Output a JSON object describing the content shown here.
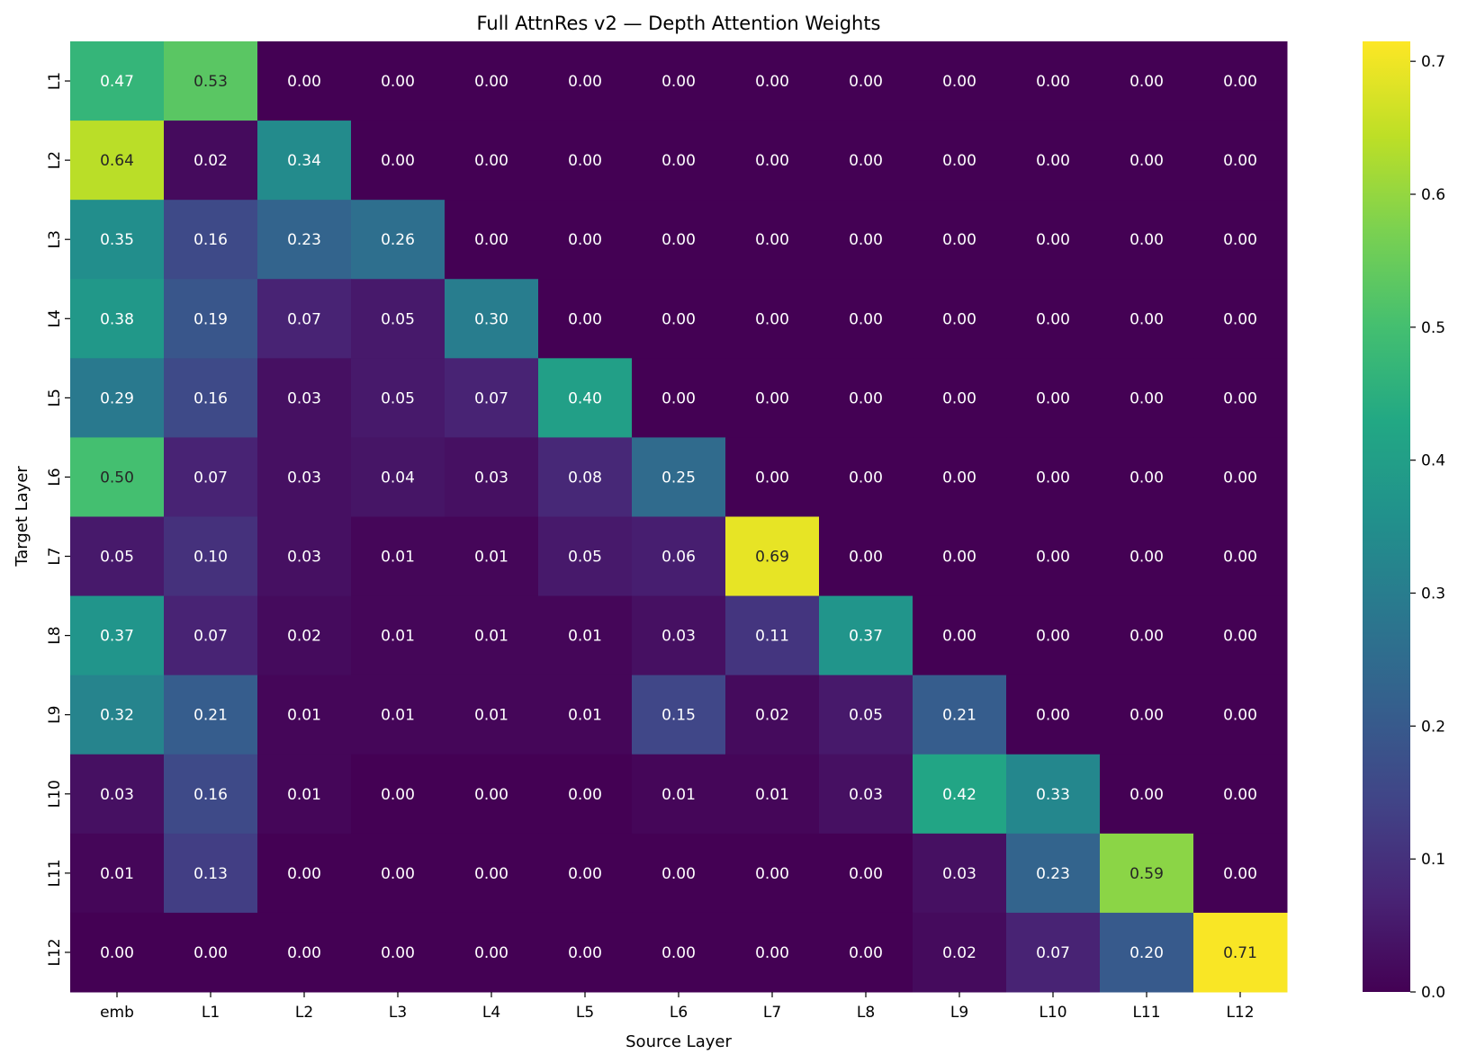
{
  "chart_data": {
    "type": "heatmap",
    "title": "Full AttnRes v2 — Depth Attention Weights",
    "xlabel": "Source Layer",
    "ylabel": "Target Layer",
    "colormap": "viridis",
    "color_range": [
      0.0,
      0.715
    ],
    "colorbar_ticks": [
      "0.0",
      "0.1",
      "0.2",
      "0.3",
      "0.4",
      "0.5",
      "0.6",
      "0.7"
    ],
    "x_categories": [
      "emb",
      "L1",
      "L2",
      "L3",
      "L4",
      "L5",
      "L6",
      "L7",
      "L8",
      "L9",
      "L10",
      "L11",
      "L12"
    ],
    "y_categories": [
      "L1",
      "L2",
      "L3",
      "L4",
      "L5",
      "L6",
      "L7",
      "L8",
      "L9",
      "L10",
      "L11",
      "L12"
    ],
    "values": [
      [
        0.47,
        0.53,
        0.0,
        0.0,
        0.0,
        0.0,
        0.0,
        0.0,
        0.0,
        0.0,
        0.0,
        0.0,
        0.0
      ],
      [
        0.64,
        0.02,
        0.34,
        0.0,
        0.0,
        0.0,
        0.0,
        0.0,
        0.0,
        0.0,
        0.0,
        0.0,
        0.0
      ],
      [
        0.35,
        0.16,
        0.23,
        0.26,
        0.0,
        0.0,
        0.0,
        0.0,
        0.0,
        0.0,
        0.0,
        0.0,
        0.0
      ],
      [
        0.38,
        0.19,
        0.07,
        0.05,
        0.3,
        0.0,
        0.0,
        0.0,
        0.0,
        0.0,
        0.0,
        0.0,
        0.0
      ],
      [
        0.29,
        0.16,
        0.03,
        0.05,
        0.07,
        0.4,
        0.0,
        0.0,
        0.0,
        0.0,
        0.0,
        0.0,
        0.0
      ],
      [
        0.5,
        0.07,
        0.03,
        0.04,
        0.03,
        0.08,
        0.25,
        0.0,
        0.0,
        0.0,
        0.0,
        0.0,
        0.0
      ],
      [
        0.05,
        0.1,
        0.03,
        0.01,
        0.01,
        0.05,
        0.06,
        0.69,
        0.0,
        0.0,
        0.0,
        0.0,
        0.0
      ],
      [
        0.37,
        0.07,
        0.02,
        0.01,
        0.01,
        0.01,
        0.03,
        0.11,
        0.37,
        0.0,
        0.0,
        0.0,
        0.0
      ],
      [
        0.32,
        0.21,
        0.01,
        0.01,
        0.01,
        0.01,
        0.15,
        0.02,
        0.05,
        0.21,
        0.0,
        0.0,
        0.0
      ],
      [
        0.03,
        0.16,
        0.01,
        0.0,
        0.0,
        0.0,
        0.01,
        0.01,
        0.03,
        0.42,
        0.33,
        0.0,
        0.0
      ],
      [
        0.01,
        0.13,
        0.0,
        0.0,
        0.0,
        0.0,
        0.0,
        0.0,
        0.0,
        0.03,
        0.23,
        0.59,
        0.0
      ],
      [
        0.0,
        0.0,
        0.0,
        0.0,
        0.0,
        0.0,
        0.0,
        0.0,
        0.0,
        0.02,
        0.07,
        0.2,
        0.71
      ]
    ],
    "annotations": true,
    "annotation_format": "0.00",
    "grid": false
  }
}
